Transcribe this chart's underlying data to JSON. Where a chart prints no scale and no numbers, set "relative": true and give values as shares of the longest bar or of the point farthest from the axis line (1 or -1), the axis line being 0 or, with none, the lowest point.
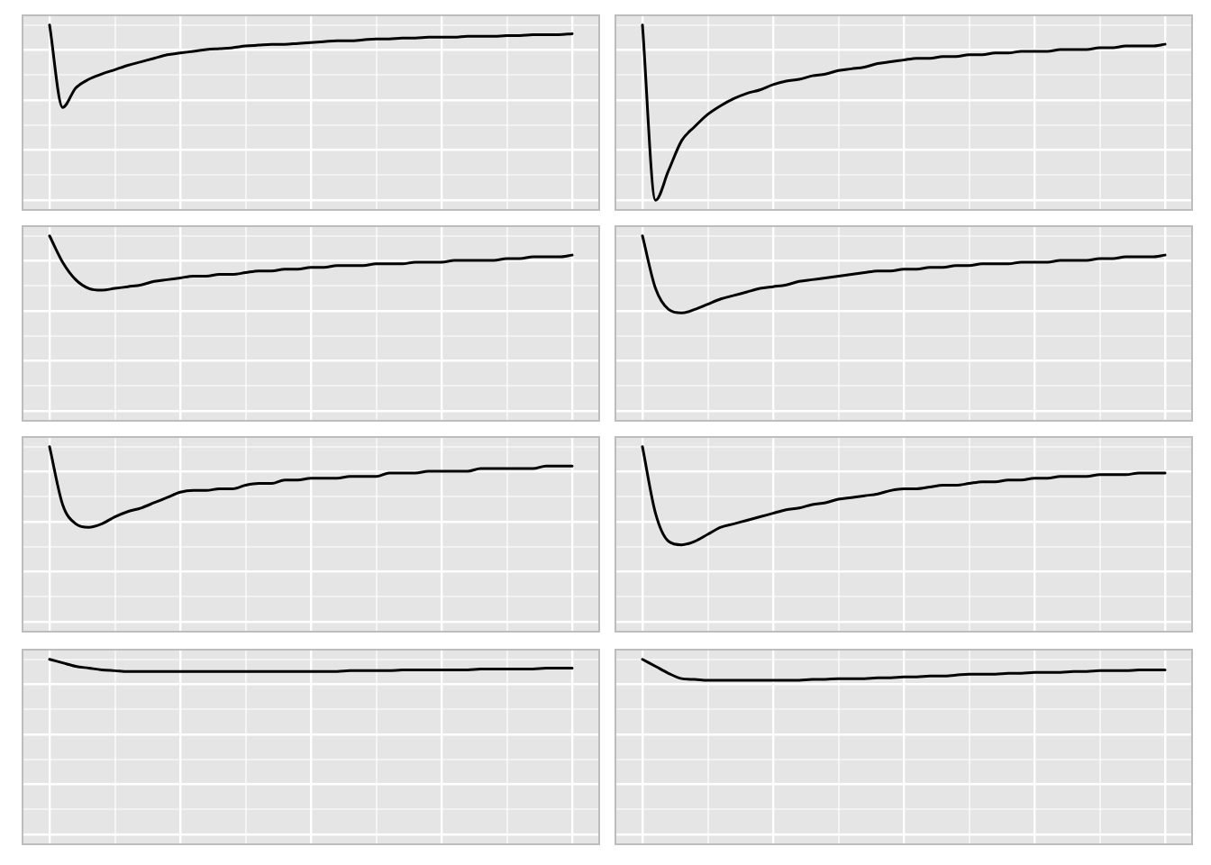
{
  "chart_data": [
    {
      "type": "line",
      "relative": true,
      "grid": true,
      "color": "#000000",
      "categories": [
        null,
        null,
        null,
        null,
        null,
        null,
        null,
        null,
        null,
        null,
        null,
        null,
        null,
        null,
        null,
        null,
        null,
        null,
        null,
        null,
        null,
        null,
        null,
        null,
        null,
        null,
        null,
        null,
        null,
        null,
        null,
        null,
        null,
        null,
        null,
        null,
        null,
        null,
        null,
        null,
        null
      ],
      "values": [
        1.0,
        0.53,
        0.64,
        0.69,
        0.72,
        0.745,
        0.77,
        0.79,
        0.81,
        0.83,
        0.84,
        0.85,
        0.86,
        0.865,
        0.87,
        0.88,
        0.885,
        0.89,
        0.89,
        0.895,
        0.9,
        0.905,
        0.91,
        0.91,
        0.915,
        0.92,
        0.92,
        0.925,
        0.925,
        0.93,
        0.93,
        0.93,
        0.935,
        0.935,
        0.935,
        0.94,
        0.94,
        0.945,
        0.945,
        0.945,
        0.95
      ]
    },
    {
      "type": "line",
      "relative": true,
      "grid": true,
      "color": "#000000",
      "categories": [
        null,
        null,
        null,
        null,
        null,
        null,
        null,
        null,
        null,
        null,
        null,
        null,
        null,
        null,
        null,
        null,
        null,
        null,
        null,
        null,
        null,
        null,
        null,
        null,
        null,
        null,
        null,
        null,
        null,
        null,
        null,
        null,
        null,
        null,
        null,
        null,
        null,
        null,
        null,
        null,
        null
      ],
      "values": [
        1.0,
        0,
        0.17,
        0.34,
        0.42,
        0.49,
        0.54,
        0.58,
        0.61,
        0.63,
        0.66,
        0.68,
        0.69,
        0.71,
        0.72,
        0.74,
        0.75,
        0.76,
        0.78,
        0.79,
        0.8,
        0.81,
        0.81,
        0.82,
        0.82,
        0.83,
        0.83,
        0.84,
        0.84,
        0.85,
        0.85,
        0.85,
        0.86,
        0.86,
        0.86,
        0.87,
        0.87,
        0.88,
        0.88,
        0.88,
        0.89
      ]
    },
    {
      "type": "line",
      "relative": true,
      "grid": true,
      "color": "#000000",
      "categories": [
        null,
        null,
        null,
        null,
        null,
        null,
        null,
        null,
        null,
        null,
        null,
        null,
        null,
        null,
        null,
        null,
        null,
        null,
        null,
        null,
        null,
        null,
        null,
        null,
        null,
        null,
        null,
        null,
        null,
        null,
        null,
        null,
        null,
        null,
        null,
        null,
        null,
        null,
        null,
        null,
        null
      ],
      "values": [
        1.0,
        0.85,
        0.75,
        0.7,
        0.69,
        0.7,
        0.71,
        0.72,
        0.74,
        0.75,
        0.76,
        0.77,
        0.77,
        0.78,
        0.78,
        0.79,
        0.8,
        0.8,
        0.81,
        0.81,
        0.82,
        0.82,
        0.83,
        0.83,
        0.83,
        0.84,
        0.84,
        0.84,
        0.85,
        0.85,
        0.85,
        0.86,
        0.86,
        0.86,
        0.86,
        0.87,
        0.87,
        0.88,
        0.88,
        0.88,
        0.89
      ]
    },
    {
      "type": "line",
      "relative": true,
      "grid": true,
      "color": "#000000",
      "categories": [
        null,
        null,
        null,
        null,
        null,
        null,
        null,
        null,
        null,
        null,
        null,
        null,
        null,
        null,
        null,
        null,
        null,
        null,
        null,
        null,
        null,
        null,
        null,
        null,
        null,
        null,
        null,
        null,
        null,
        null,
        null,
        null,
        null,
        null,
        null,
        null,
        null,
        null,
        null,
        null,
        null
      ],
      "values": [
        1.0,
        0.7,
        0.58,
        0.56,
        0.58,
        0.61,
        0.64,
        0.66,
        0.68,
        0.7,
        0.71,
        0.72,
        0.74,
        0.75,
        0.76,
        0.77,
        0.78,
        0.79,
        0.8,
        0.8,
        0.81,
        0.81,
        0.82,
        0.82,
        0.83,
        0.83,
        0.84,
        0.84,
        0.84,
        0.85,
        0.85,
        0.85,
        0.86,
        0.86,
        0.86,
        0.87,
        0.87,
        0.88,
        0.88,
        0.88,
        0.89
      ]
    },
    {
      "type": "line",
      "relative": true,
      "grid": true,
      "color": "#000000",
      "categories": [
        null,
        null,
        null,
        null,
        null,
        null,
        null,
        null,
        null,
        null,
        null,
        null,
        null,
        null,
        null,
        null,
        null,
        null,
        null,
        null,
        null,
        null,
        null,
        null,
        null,
        null,
        null,
        null,
        null,
        null,
        null,
        null,
        null,
        null,
        null,
        null,
        null,
        null,
        null,
        null,
        null
      ],
      "values": [
        1.0,
        0.67,
        0.56,
        0.54,
        0.56,
        0.6,
        0.63,
        0.65,
        0.68,
        0.71,
        0.74,
        0.75,
        0.75,
        0.76,
        0.76,
        0.78,
        0.79,
        0.79,
        0.81,
        0.81,
        0.82,
        0.82,
        0.82,
        0.83,
        0.83,
        0.83,
        0.85,
        0.85,
        0.85,
        0.86,
        0.86,
        0.86,
        0.86,
        0.875,
        0.875,
        0.875,
        0.875,
        0.875,
        0.89,
        0.89,
        0.89
      ]
    },
    {
      "type": "line",
      "relative": true,
      "grid": true,
      "color": "#000000",
      "categories": [
        null,
        null,
        null,
        null,
        null,
        null,
        null,
        null,
        null,
        null,
        null,
        null,
        null,
        null,
        null,
        null,
        null,
        null,
        null,
        null,
        null,
        null,
        null,
        null,
        null,
        null,
        null,
        null,
        null,
        null,
        null,
        null,
        null,
        null,
        null,
        null,
        null,
        null,
        null,
        null,
        null
      ],
      "values": [
        1.0,
        0.62,
        0.46,
        0.44,
        0.46,
        0.5,
        0.54,
        0.56,
        0.58,
        0.6,
        0.62,
        0.64,
        0.65,
        0.67,
        0.68,
        0.7,
        0.71,
        0.72,
        0.73,
        0.75,
        0.76,
        0.76,
        0.77,
        0.78,
        0.78,
        0.79,
        0.8,
        0.8,
        0.81,
        0.81,
        0.82,
        0.82,
        0.83,
        0.83,
        0.83,
        0.84,
        0.84,
        0.84,
        0.85,
        0.85,
        0.85
      ]
    },
    {
      "type": "line",
      "relative": true,
      "grid": true,
      "color": "#000000",
      "categories": [
        null,
        null,
        null,
        null,
        null,
        null,
        null,
        null,
        null,
        null,
        null,
        null,
        null,
        null,
        null,
        null,
        null,
        null,
        null,
        null,
        null,
        null,
        null,
        null,
        null,
        null,
        null,
        null,
        null,
        null,
        null,
        null,
        null,
        null,
        null,
        null,
        null,
        null,
        null,
        null,
        null
      ],
      "values": [
        1.0,
        0.98,
        0.96,
        0.95,
        0.94,
        0.935,
        0.93,
        0.93,
        0.93,
        0.93,
        0.93,
        0.93,
        0.93,
        0.93,
        0.93,
        0.93,
        0.93,
        0.93,
        0.93,
        0.93,
        0.93,
        0.93,
        0.93,
        0.935,
        0.935,
        0.935,
        0.935,
        0.94,
        0.94,
        0.94,
        0.94,
        0.94,
        0.94,
        0.945,
        0.945,
        0.945,
        0.945,
        0.945,
        0.95,
        0.95,
        0.95
      ]
    },
    {
      "type": "line",
      "relative": true,
      "grid": true,
      "color": "#000000",
      "categories": [
        null,
        null,
        null,
        null,
        null,
        null,
        null,
        null,
        null,
        null,
        null,
        null,
        null,
        null,
        null,
        null,
        null,
        null,
        null,
        null,
        null,
        null,
        null,
        null,
        null,
        null,
        null,
        null,
        null,
        null,
        null,
        null,
        null,
        null,
        null,
        null,
        null,
        null,
        null,
        null,
        null
      ],
      "values": [
        1.0,
        0.96,
        0.92,
        0.89,
        0.885,
        0.88,
        0.88,
        0.88,
        0.88,
        0.88,
        0.88,
        0.88,
        0.88,
        0.885,
        0.885,
        0.89,
        0.89,
        0.89,
        0.895,
        0.895,
        0.9,
        0.9,
        0.905,
        0.905,
        0.91,
        0.915,
        0.915,
        0.915,
        0.92,
        0.92,
        0.925,
        0.925,
        0.925,
        0.93,
        0.93,
        0.935,
        0.935,
        0.935,
        0.94,
        0.94,
        0.94
      ]
    }
  ]
}
